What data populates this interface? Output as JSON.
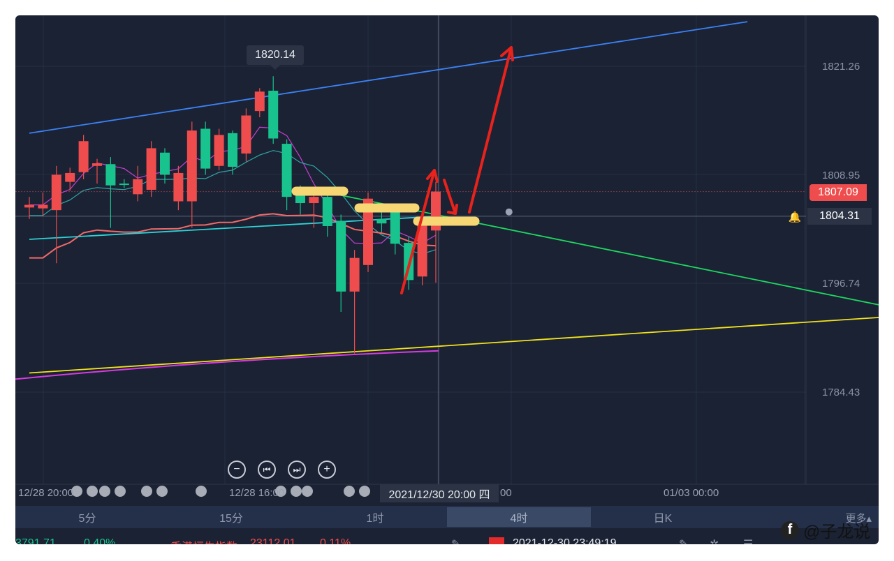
{
  "price_axis": {
    "labels": [
      "1821.26",
      "1808.95",
      "1796.74",
      "1784.43"
    ]
  },
  "current_price": "1807.09",
  "crosshair_price": "1804.31",
  "peak_tooltip": "1820.14",
  "time_axis": {
    "labels": [
      "12/28 20:00",
      "12/28 16:00",
      "00",
      "01/03 00:00"
    ],
    "crosshair_time": "2021/12/30 20:00 四"
  },
  "controls": {
    "zoom_out": "−",
    "prev": "⏮",
    "next": "⏭",
    "zoom_in": "+"
  },
  "periods": [
    {
      "label": "5分",
      "active": false
    },
    {
      "label": "15分",
      "active": false
    },
    {
      "label": "1时",
      "active": false
    },
    {
      "label": "4时",
      "active": true
    },
    {
      "label": "日K",
      "active": false
    }
  ],
  "more_label": "更多▴",
  "ticker": {
    "value1": "3791.71",
    "pct1": "0.40%",
    "index_name": "香港恒生指数",
    "value2": "23112.01",
    "pct2": "0.11%",
    "datetime": "2021-12-30 23:49:19"
  },
  "watermark": {
    "text": "@子龙说",
    "icon": "facebook-icon"
  },
  "colors": {
    "background": "#1b2233",
    "up": "#ef4d4d",
    "down": "#19c38e",
    "channel_upper": "#3b82f6",
    "channel_lower": "#f2e31c",
    "trend_green": "#1ed760",
    "ma_cyan": "#2fd1d6",
    "ma_salmon": "#f06a6a",
    "ma_magenta": "#d63ce0",
    "highlight": "#f7d774",
    "arrow": "#e8221c"
  },
  "chart_data": {
    "type": "candlestick",
    "timeframe": "4时",
    "y_axis_ticks": [
      1821.26,
      1808.95,
      1796.74,
      1784.43
    ],
    "ylim": [
      1778,
      1825
    ],
    "candles": [
      {
        "o": 1805.3,
        "c": 1805.6,
        "h": 1806.5,
        "l": 1804.0
      },
      {
        "o": 1805.2,
        "c": 1805.6,
        "h": 1807.0,
        "l": 1804.3
      },
      {
        "o": 1805.0,
        "c": 1809.0,
        "h": 1810.0,
        "l": 1799.0
      },
      {
        "o": 1808.2,
        "c": 1809.2,
        "h": 1809.8,
        "l": 1807.2
      },
      {
        "o": 1809.3,
        "c": 1812.8,
        "h": 1813.5,
        "l": 1808.5
      },
      {
        "o": 1810.0,
        "c": 1810.3,
        "h": 1810.8,
        "l": 1808.0
      },
      {
        "o": 1810.2,
        "c": 1807.8,
        "h": 1811.0,
        "l": 1803.0
      },
      {
        "o": 1808.0,
        "c": 1807.9,
        "h": 1808.5,
        "l": 1807.5
      },
      {
        "o": 1806.8,
        "c": 1808.5,
        "h": 1810.0,
        "l": 1806.0
      },
      {
        "o": 1807.3,
        "c": 1812.0,
        "h": 1812.8,
        "l": 1806.5
      },
      {
        "o": 1811.5,
        "c": 1809.0,
        "h": 1812.0,
        "l": 1808.0
      },
      {
        "o": 1806.0,
        "c": 1809.2,
        "h": 1810.0,
        "l": 1805.0
      },
      {
        "o": 1806.0,
        "c": 1814.0,
        "h": 1815.0,
        "l": 1803.0
      },
      {
        "o": 1814.2,
        "c": 1809.7,
        "h": 1815.0,
        "l": 1809.0
      },
      {
        "o": 1810.0,
        "c": 1813.5,
        "h": 1814.2,
        "l": 1809.5
      },
      {
        "o": 1813.7,
        "c": 1809.9,
        "h": 1814.0,
        "l": 1809.0
      },
      {
        "o": 1811.4,
        "c": 1815.7,
        "h": 1816.5,
        "l": 1810.5
      },
      {
        "o": 1816.2,
        "c": 1818.4,
        "h": 1818.8,
        "l": 1815.5
      },
      {
        "o": 1818.5,
        "c": 1813.1,
        "h": 1820.14,
        "l": 1812.5
      },
      {
        "o": 1812.5,
        "c": 1806.5,
        "h": 1813.0,
        "l": 1805.0
      },
      {
        "o": 1807.3,
        "c": 1805.8,
        "h": 1807.8,
        "l": 1804.5
      },
      {
        "o": 1805.8,
        "c": 1806.5,
        "h": 1807.0,
        "l": 1803.0
      },
      {
        "o": 1806.5,
        "c": 1803.2,
        "h": 1807.5,
        "l": 1802.0
      },
      {
        "o": 1803.8,
        "c": 1795.8,
        "h": 1804.5,
        "l": 1793.5
      },
      {
        "o": 1795.8,
        "c": 1799.6,
        "h": 1800.5,
        "l": 1788.8
      },
      {
        "o": 1798.8,
        "c": 1806.3,
        "h": 1807.0,
        "l": 1798.0
      },
      {
        "o": 1804.0,
        "c": 1803.5,
        "h": 1805.0,
        "l": 1802.5
      },
      {
        "o": 1804.8,
        "c": 1801.2,
        "h": 1805.5,
        "l": 1800.0
      },
      {
        "o": 1801.3,
        "c": 1797.1,
        "h": 1802.0,
        "l": 1796.0
      },
      {
        "o": 1797.5,
        "c": 1803.3,
        "h": 1804.0,
        "l": 1796.5
      },
      {
        "o": 1802.7,
        "c": 1807.1,
        "h": 1808.2,
        "l": 1796.8
      }
    ],
    "lines": [
      {
        "name": "",
        "color": "#3b82f6",
        "points": [
          [
            0,
            1813.7
          ],
          [
            53,
            1826.3
          ]
        ]
      },
      {
        "name": "",
        "color": "#f2e31c",
        "points": [
          [
            0,
            1786.6
          ],
          [
            63,
            1792.9
          ]
        ]
      },
      {
        "name": "",
        "color": "#1ed760",
        "points": [
          [
            22.3,
            1806.9
          ],
          [
            63,
            1794.2
          ]
        ]
      },
      {
        "name": "",
        "color": "#2fd1d6",
        "points": [
          [
            0,
            1801.7
          ],
          [
            30,
            1804.3
          ]
        ]
      }
    ]
  }
}
